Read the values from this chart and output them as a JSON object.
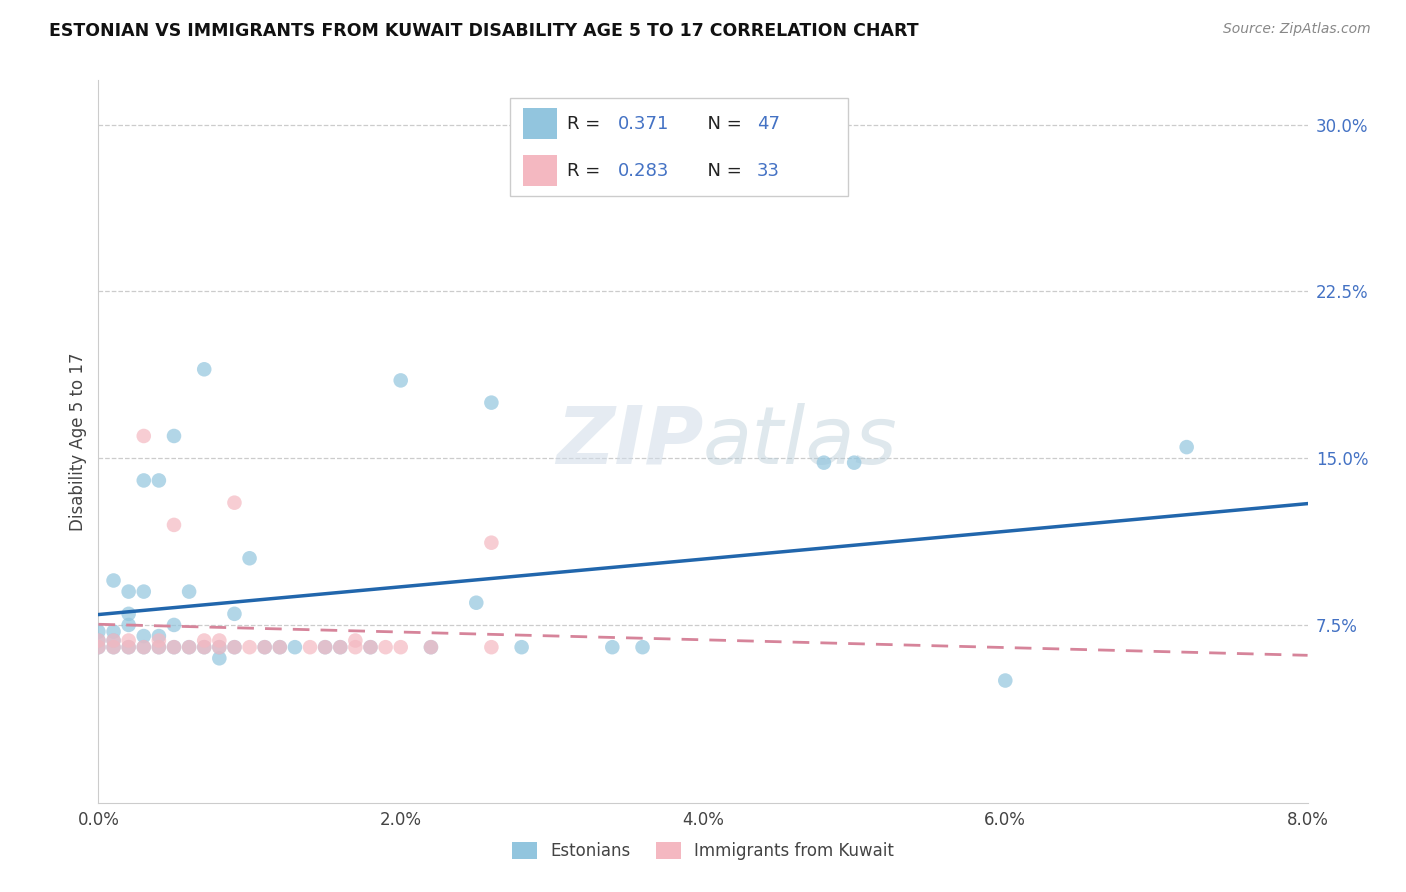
{
  "title": "ESTONIAN VS IMMIGRANTS FROM KUWAIT DISABILITY AGE 5 TO 17 CORRELATION CHART",
  "source": "Source: ZipAtlas.com",
  "ylabel": "Disability Age 5 to 17",
  "legend_label1": "Estonians",
  "legend_label2": "Immigrants from Kuwait",
  "R1": 0.371,
  "N1": 47,
  "R2": 0.283,
  "N2": 33,
  "color_blue": "#92c5de",
  "color_pink": "#f4b8c1",
  "line_blue": "#2166ac",
  "line_pink": "#d6849a",
  "xmin": 0.0,
  "xmax": 0.08,
  "ymin": 0.0,
  "ymax": 0.32,
  "x_ticks": [
    0.0,
    0.02,
    0.04,
    0.06,
    0.08
  ],
  "y_ticks": [
    0.075,
    0.15,
    0.225,
    0.3
  ],
  "y_tick_labels": [
    "7.5%",
    "15.0%",
    "22.5%",
    "30.0%"
  ],
  "blue_x": [
    0.0,
    0.0,
    0.0,
    0.001,
    0.001,
    0.001,
    0.001,
    0.002,
    0.002,
    0.002,
    0.002,
    0.003,
    0.003,
    0.003,
    0.003,
    0.004,
    0.004,
    0.004,
    0.005,
    0.005,
    0.005,
    0.006,
    0.006,
    0.007,
    0.007,
    0.008,
    0.008,
    0.009,
    0.009,
    0.01,
    0.011,
    0.012,
    0.013,
    0.015,
    0.016,
    0.018,
    0.02,
    0.022,
    0.025,
    0.026,
    0.028,
    0.034,
    0.036,
    0.048,
    0.05,
    0.06,
    0.072
  ],
  "blue_y": [
    0.065,
    0.068,
    0.072,
    0.065,
    0.068,
    0.072,
    0.095,
    0.065,
    0.075,
    0.08,
    0.09,
    0.065,
    0.07,
    0.09,
    0.14,
    0.065,
    0.07,
    0.14,
    0.065,
    0.075,
    0.16,
    0.065,
    0.09,
    0.065,
    0.19,
    0.06,
    0.065,
    0.065,
    0.08,
    0.105,
    0.065,
    0.065,
    0.065,
    0.065,
    0.065,
    0.065,
    0.185,
    0.065,
    0.085,
    0.175,
    0.065,
    0.065,
    0.065,
    0.148,
    0.148,
    0.05,
    0.155
  ],
  "pink_x": [
    0.0,
    0.0,
    0.001,
    0.001,
    0.002,
    0.002,
    0.003,
    0.003,
    0.004,
    0.004,
    0.005,
    0.005,
    0.006,
    0.007,
    0.007,
    0.008,
    0.008,
    0.009,
    0.009,
    0.01,
    0.011,
    0.012,
    0.014,
    0.015,
    0.016,
    0.017,
    0.017,
    0.018,
    0.019,
    0.02,
    0.022,
    0.026,
    0.026
  ],
  "pink_y": [
    0.065,
    0.068,
    0.065,
    0.068,
    0.065,
    0.068,
    0.065,
    0.16,
    0.065,
    0.068,
    0.065,
    0.12,
    0.065,
    0.065,
    0.068,
    0.065,
    0.068,
    0.065,
    0.13,
    0.065,
    0.065,
    0.065,
    0.065,
    0.065,
    0.065,
    0.065,
    0.068,
    0.065,
    0.065,
    0.065,
    0.065,
    0.065,
    0.112
  ]
}
